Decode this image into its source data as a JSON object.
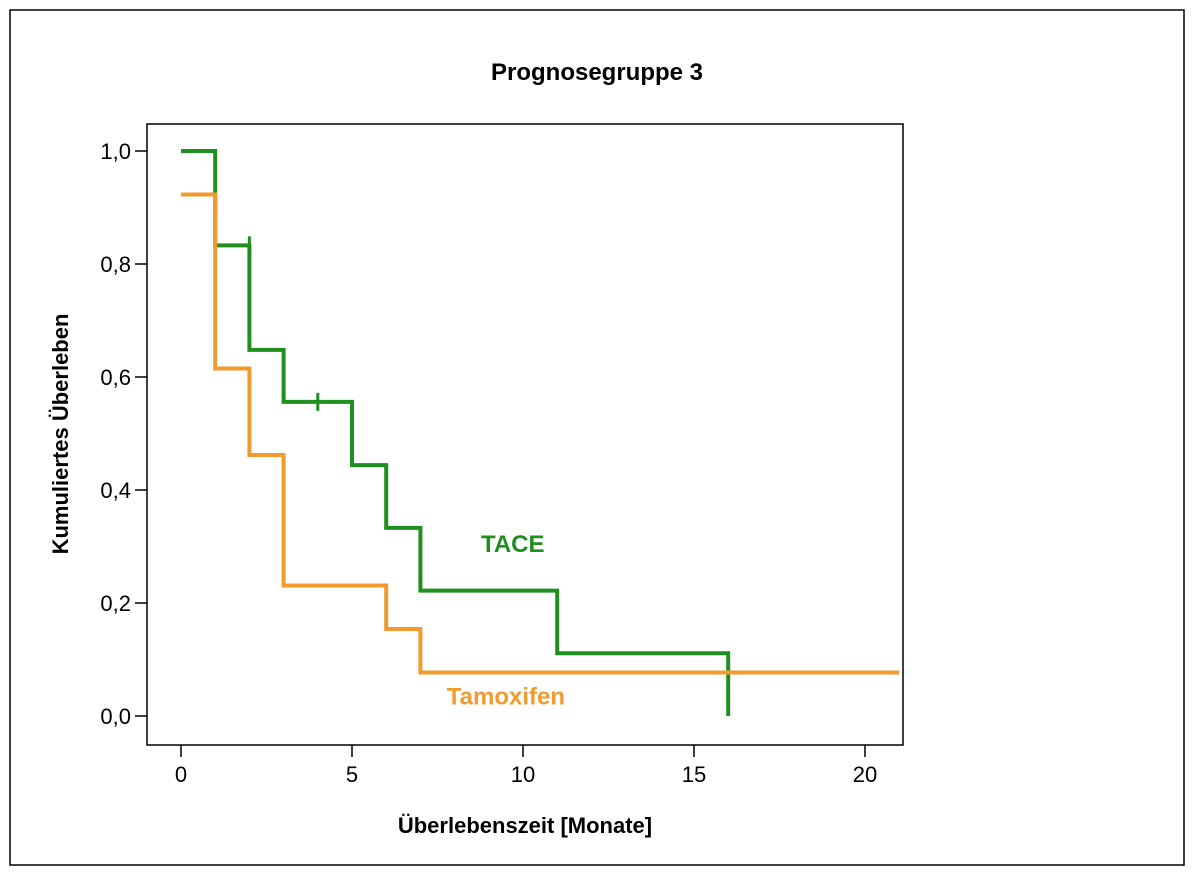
{
  "chart_data": {
    "type": "line",
    "subtype": "kaplan-meier-step",
    "title": "Prognosegruppe 3",
    "xlabel": "Überlebenszeit [Monate]",
    "ylabel": "Kumuliertes Überleben",
    "xlim": [
      -1,
      21
    ],
    "ylim": [
      -0.05,
      1.05
    ],
    "x_ticks": [
      0,
      5,
      10,
      15,
      20
    ],
    "x_tick_labels": [
      "0",
      "5",
      "10",
      "15",
      "20"
    ],
    "y_ticks": [
      0.0,
      0.2,
      0.4,
      0.6,
      0.8,
      1.0
    ],
    "y_tick_labels": [
      "0,0",
      "0,2",
      "0,4",
      "0,6",
      "0,8",
      "1,0"
    ],
    "grid": false,
    "legend": "inline labels",
    "series": [
      {
        "name": "TACE",
        "color": "#1f8f1f",
        "x": [
          0,
          1,
          2,
          2,
          3,
          5,
          6,
          7,
          11,
          16
        ],
        "y": [
          1.0,
          0.833,
          0.741,
          0.648,
          0.556,
          0.444,
          0.333,
          0.222,
          0.111,
          0.0
        ],
        "end_x": 16,
        "censored": [
          {
            "x": 2.0,
            "y": 0.833
          },
          {
            "x": 4.0,
            "y": 0.556
          }
        ]
      },
      {
        "name": "Tamoxifen",
        "color": "#f29a2e",
        "x": [
          0,
          1,
          2,
          2,
          3,
          3,
          6,
          7
        ],
        "y": [
          0.923,
          0.615,
          0.538,
          0.462,
          0.385,
          0.231,
          0.154,
          0.077
        ],
        "end_x": 21,
        "censored": []
      }
    ],
    "annotations": [
      {
        "text": "TACE",
        "color": "#1f8f1f",
        "x": 9.7,
        "y": 0.29
      },
      {
        "text": "Tamoxifen",
        "color": "#f29a2e",
        "x": 9.5,
        "y": 0.02
      }
    ]
  }
}
